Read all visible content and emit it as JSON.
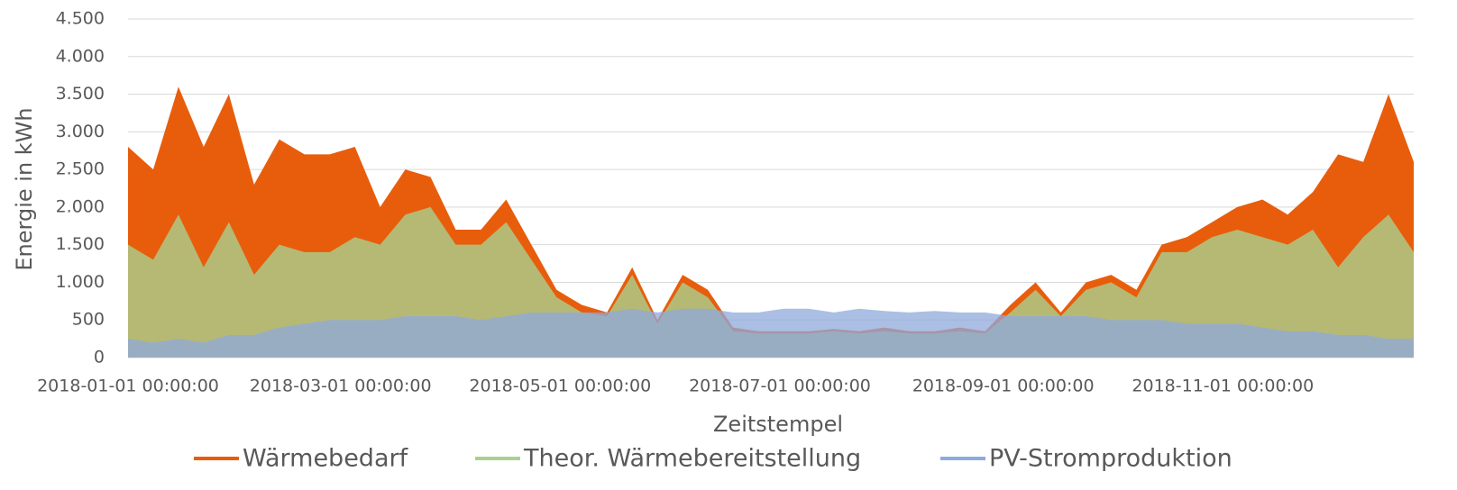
{
  "chart_data": {
    "type": "area",
    "x_label": "Zeitstempel",
    "y_label": "Energie in kWh",
    "x": [
      "2018-01-01 00:00:00",
      "2018-01-08 00:00:00",
      "2018-01-15 00:00:00",
      "2018-01-22 00:00:00",
      "2018-01-29 00:00:00",
      "2018-02-05 00:00:00",
      "2018-02-12 00:00:00",
      "2018-02-19 00:00:00",
      "2018-02-26 00:00:00",
      "2018-03-05 00:00:00",
      "2018-03-12 00:00:00",
      "2018-03-19 00:00:00",
      "2018-03-26 00:00:00",
      "2018-04-02 00:00:00",
      "2018-04-09 00:00:00",
      "2018-04-16 00:00:00",
      "2018-04-23 00:00:00",
      "2018-04-30 00:00:00",
      "2018-05-07 00:00:00",
      "2018-05-14 00:00:00",
      "2018-05-21 00:00:00",
      "2018-05-28 00:00:00",
      "2018-06-04 00:00:00",
      "2018-06-11 00:00:00",
      "2018-06-18 00:00:00",
      "2018-06-25 00:00:00",
      "2018-07-02 00:00:00",
      "2018-07-09 00:00:00",
      "2018-07-16 00:00:00",
      "2018-07-23 00:00:00",
      "2018-07-30 00:00:00",
      "2018-08-06 00:00:00",
      "2018-08-13 00:00:00",
      "2018-08-20 00:00:00",
      "2018-08-27 00:00:00",
      "2018-09-03 00:00:00",
      "2018-09-10 00:00:00",
      "2018-09-17 00:00:00",
      "2018-09-24 00:00:00",
      "2018-10-01 00:00:00",
      "2018-10-08 00:00:00",
      "2018-10-15 00:00:00",
      "2018-10-22 00:00:00",
      "2018-10-29 00:00:00",
      "2018-11-05 00:00:00",
      "2018-11-12 00:00:00",
      "2018-11-19 00:00:00",
      "2018-11-26 00:00:00",
      "2018-12-03 00:00:00",
      "2018-12-10 00:00:00",
      "2018-12-17 00:00:00",
      "2018-12-24 00:00:00"
    ],
    "xlim": [
      "2018-01-01 00:00:00",
      "2018-12-24 00:00:00"
    ],
    "xticks": [
      "2018-01-01 00:00:00",
      "2018-03-01 00:00:00",
      "2018-05-01 00:00:00",
      "2018-07-01 00:00:00",
      "2018-09-01 00:00:00",
      "2018-11-01 00:00:00"
    ],
    "ylim": [
      0,
      4500
    ],
    "yticks": [
      0,
      500,
      {
        "value": 1000,
        "label": "1.000"
      },
      {
        "value": 1500,
        "label": "1.500"
      },
      {
        "value": 2000,
        "label": "2.000"
      },
      {
        "value": 2500,
        "label": "2.500"
      },
      {
        "value": 3000,
        "label": "3.000"
      },
      {
        "value": 3500,
        "label": "3.500"
      },
      {
        "value": 4000,
        "label": "4.000"
      },
      {
        "value": 4500,
        "label": "4.500"
      }
    ],
    "grid": true,
    "legend": "bottom",
    "series": [
      {
        "name": "Wärmebedarf",
        "color": "#e85d0c",
        "values": [
          2800,
          2500,
          3600,
          2800,
          3500,
          2300,
          2900,
          2700,
          2700,
          2800,
          2000,
          2500,
          2400,
          1700,
          1700,
          2100,
          1500,
          900,
          700,
          600,
          1200,
          500,
          1100,
          900,
          400,
          350,
          350,
          350,
          380,
          350,
          400,
          350,
          350,
          400,
          350,
          700,
          1000,
          600,
          1000,
          1100,
          900,
          1500,
          1600,
          1800,
          2000,
          2100,
          1900,
          2200,
          2700,
          2600,
          3500,
          2600
        ]
      },
      {
        "name": "Theor. Wärmebereitstellung",
        "color": "#a9d18e",
        "values": [
          1500,
          1300,
          1900,
          1200,
          1800,
          1100,
          1500,
          1400,
          1400,
          1600,
          1500,
          1900,
          2000,
          1500,
          1500,
          1800,
          1300,
          800,
          600,
          550,
          1100,
          450,
          1000,
          800,
          350,
          320,
          320,
          320,
          350,
          320,
          350,
          320,
          320,
          350,
          320,
          600,
          900,
          550,
          900,
          1000,
          800,
          1400,
          1400,
          1600,
          1700,
          1600,
          1500,
          1700,
          1200,
          1600,
          1900,
          1400
        ]
      },
      {
        "name": "PV-Stromproduktion",
        "color": "#8faadc",
        "values": [
          250,
          200,
          250,
          200,
          300,
          300,
          400,
          450,
          500,
          500,
          500,
          550,
          550,
          550,
          500,
          550,
          600,
          600,
          600,
          600,
          650,
          600,
          650,
          650,
          600,
          600,
          650,
          650,
          600,
          650,
          620,
          600,
          620,
          600,
          600,
          550,
          550,
          550,
          550,
          500,
          500,
          500,
          450,
          450,
          450,
          400,
          350,
          350,
          300,
          300,
          250,
          250
        ]
      }
    ]
  }
}
